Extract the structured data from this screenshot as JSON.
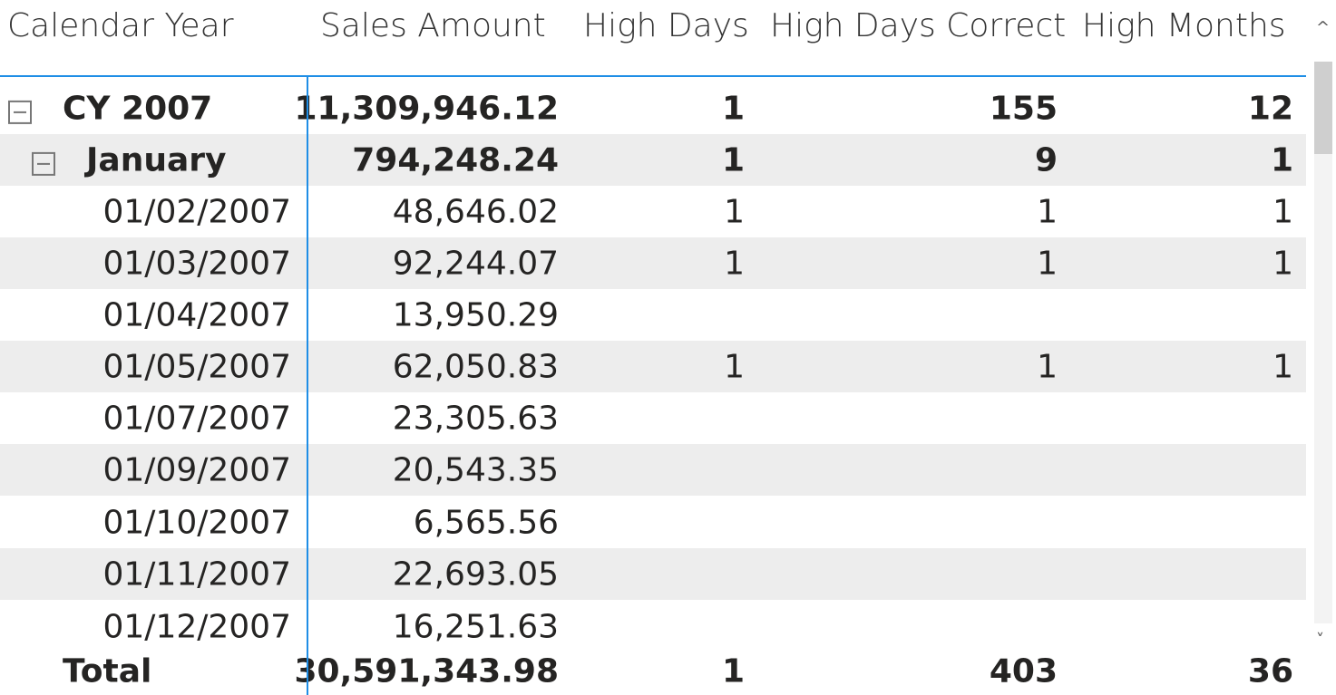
{
  "headers": {
    "col1": "Calendar Year",
    "col2": "Sales Amount",
    "col3": "High Days",
    "col4": "High Days Correct",
    "col5": "High Months"
  },
  "rows": [
    {
      "label": "CY 2007",
      "sales": "11,309,946.12",
      "high_days": "1",
      "high_days_correct": "155",
      "high_months": "12"
    },
    {
      "label": "January",
      "sales": "794,248.24",
      "high_days": "1",
      "high_days_correct": "9",
      "high_months": "1"
    },
    {
      "label": "01/02/2007",
      "sales": "48,646.02",
      "high_days": "1",
      "high_days_correct": "1",
      "high_months": "1"
    },
    {
      "label": "01/03/2007",
      "sales": "92,244.07",
      "high_days": "1",
      "high_days_correct": "1",
      "high_months": "1"
    },
    {
      "label": "01/04/2007",
      "sales": "13,950.29",
      "high_days": "",
      "high_days_correct": "",
      "high_months": ""
    },
    {
      "label": "01/05/2007",
      "sales": "62,050.83",
      "high_days": "1",
      "high_days_correct": "1",
      "high_months": "1"
    },
    {
      "label": "01/07/2007",
      "sales": "23,305.63",
      "high_days": "",
      "high_days_correct": "",
      "high_months": ""
    },
    {
      "label": "01/09/2007",
      "sales": "20,543.35",
      "high_days": "",
      "high_days_correct": "",
      "high_months": ""
    },
    {
      "label": "01/10/2007",
      "sales": "6,565.56",
      "high_days": "",
      "high_days_correct": "",
      "high_months": ""
    },
    {
      "label": "01/11/2007",
      "sales": "22,693.05",
      "high_days": "",
      "high_days_correct": "",
      "high_months": ""
    },
    {
      "label": "01/12/2007",
      "sales": "16,251.63",
      "high_days": "",
      "high_days_correct": "",
      "high_months": ""
    }
  ],
  "total": {
    "label": "Total",
    "sales": "30,591,343.98",
    "high_days": "1",
    "high_days_correct": "403",
    "high_months": "36"
  },
  "scroll": {
    "up_icon": "chevron-up-icon",
    "down_icon": "chevron-down-icon",
    "up_glyph": "^",
    "down_glyph": "˅"
  },
  "colors": {
    "accent": "#1f8ee6",
    "band": "#ededed"
  }
}
